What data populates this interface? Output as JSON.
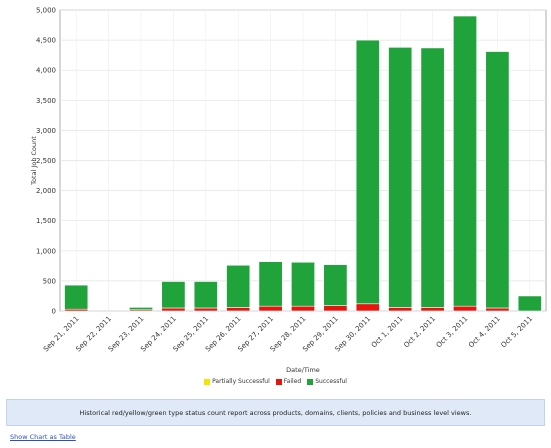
{
  "chart_data": {
    "type": "bar",
    "stacked": true,
    "title": "",
    "xlabel": "Date/Time",
    "ylabel": "Total Job Count",
    "ylim": [
      0,
      5000
    ],
    "yticks": [
      "0",
      "500",
      "1,000",
      "1,500",
      "2,000",
      "2,500",
      "3,000",
      "3,500",
      "4,000",
      "4,500",
      "5,000"
    ],
    "ytick_values": [
      0,
      500,
      1000,
      1500,
      2000,
      2500,
      3000,
      3500,
      4000,
      4500,
      5000
    ],
    "grid": true,
    "legend_position": "bottom",
    "categories": [
      "Sep 21, 2011",
      "Sep 22, 2011",
      "Sep 23, 2011",
      "Sep 24, 2011",
      "Sep 25, 2011",
      "Sep 26, 2011",
      "Sep 27, 2011",
      "Sep 28, 2011",
      "Sep 29, 2011",
      "Sep 30, 2011",
      "Oct 1, 2011",
      "Oct 2, 2011",
      "Oct 3, 2011",
      "Oct 4, 2011",
      "Oct 5, 2011"
    ],
    "series": [
      {
        "name": "Partially Successful",
        "color": "#f2e600",
        "values": [
          0,
          0,
          0,
          0,
          0,
          0,
          0,
          0,
          0,
          0,
          0,
          0,
          0,
          0,
          0
        ]
      },
      {
        "name": "Failed",
        "color": "#e8150f",
        "values": [
          30,
          0,
          20,
          50,
          50,
          60,
          80,
          80,
          90,
          120,
          60,
          60,
          80,
          50,
          0
        ]
      },
      {
        "name": "Successful",
        "color": "#1fa33a",
        "values": [
          400,
          0,
          40,
          440,
          440,
          700,
          740,
          730,
          680,
          4380,
          4320,
          4310,
          4820,
          4260,
          250
        ]
      }
    ]
  },
  "description": "Historical red/yellow/green type status count report across products, domains, clients, policies and business level views.",
  "show_table_link": "Show Chart as Table"
}
